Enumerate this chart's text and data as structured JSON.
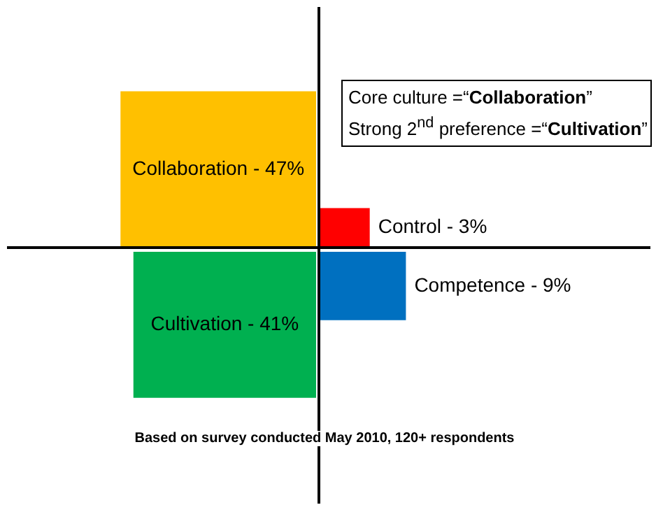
{
  "chart_data": {
    "type": "other",
    "categories": [
      "Collaboration -",
      "Control -",
      "Cultivation -",
      "Competence -"
    ],
    "values": [
      47,
      3,
      41,
      9
    ],
    "value_labels": [
      "47%",
      "3%",
      "41%",
      "9%"
    ],
    "colors": [
      "#ffc000",
      "#ff0000",
      "#00b050",
      "#0070c0"
    ],
    "annotations": [
      "Core culture =“Collaboration”\nStrong 2$^{nd}$ preference =“Cultivation”",
      "Based on survey conducted May 2010, 120+ respondents"
    ]
  }
}
